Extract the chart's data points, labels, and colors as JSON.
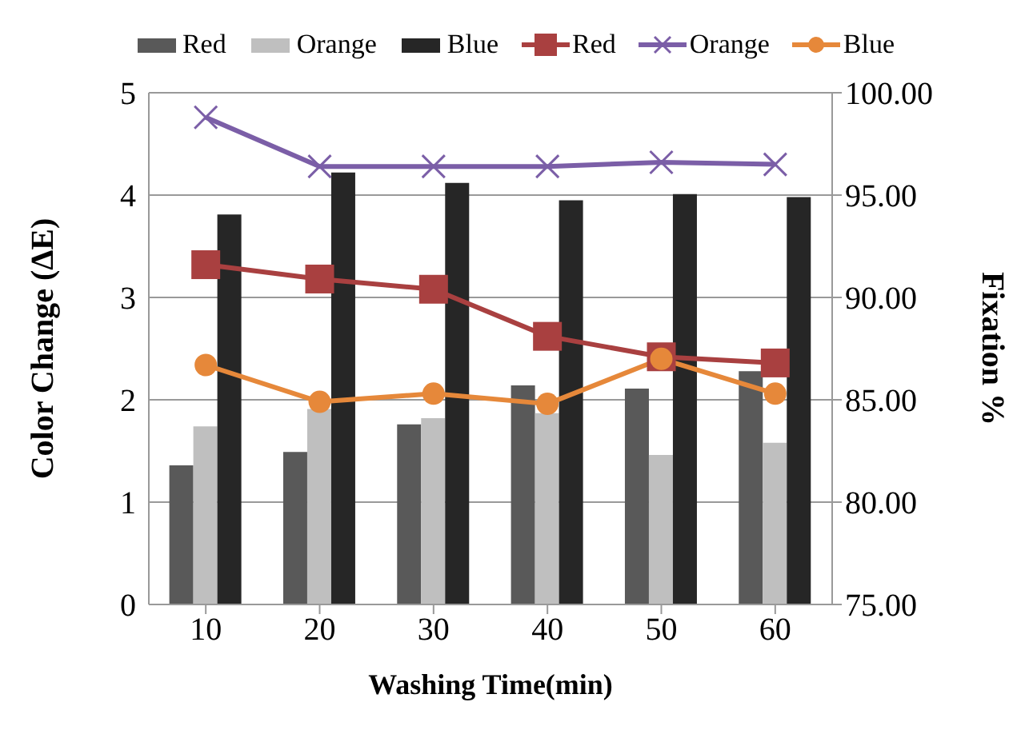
{
  "chart_data": {
    "type": "bar",
    "xlabel": "Washing Time(min)",
    "ylabel": "Color Change (ΔE)",
    "y2label": "Fixation %",
    "categories": [
      "10",
      "20",
      "30",
      "40",
      "50",
      "60"
    ],
    "series": [
      {
        "name": "Red",
        "color": "#595959",
        "values": [
          1.36,
          1.49,
          1.76,
          2.14,
          2.11,
          2.28
        ]
      },
      {
        "name": "Orange",
        "color": "#bfbfbf",
        "values": [
          1.74,
          1.91,
          1.82,
          1.87,
          1.46,
          1.58
        ]
      },
      {
        "name": "Blue",
        "color": "#262626",
        "values": [
          3.81,
          4.22,
          4.12,
          3.95,
          4.01,
          3.98
        ]
      },
      {
        "name": "Red",
        "type": "line",
        "axis": "y2",
        "marker": "square",
        "color": "#a94040",
        "values": [
          91.6,
          90.9,
          90.4,
          88.1,
          87.1,
          86.8
        ]
      },
      {
        "name": "Orange",
        "type": "line",
        "axis": "y2",
        "marker": "cross",
        "color": "#7b5ea7",
        "values": [
          98.8,
          96.4,
          96.4,
          96.4,
          96.6,
          96.5
        ]
      },
      {
        "name": "Blue",
        "type": "line",
        "axis": "y2",
        "marker": "circle",
        "color": "#e6883a",
        "values": [
          86.7,
          84.9,
          85.3,
          84.8,
          87.0,
          85.3
        ]
      }
    ],
    "ylim": [
      0,
      5
    ],
    "yticks": [
      0,
      1,
      2,
      3,
      4,
      5
    ],
    "y2lim": [
      75,
      100
    ],
    "y2ticks": [
      {
        "value": 75,
        "label": "75.00"
      },
      {
        "value": 80,
        "label": "80.00"
      },
      {
        "value": 85,
        "label": "85.00"
      },
      {
        "value": 90,
        "label": "90.00"
      },
      {
        "value": 95,
        "label": "95.00"
      },
      {
        "value": 100,
        "label": "100.00"
      }
    ],
    "grid": "y",
    "legend": "top"
  }
}
